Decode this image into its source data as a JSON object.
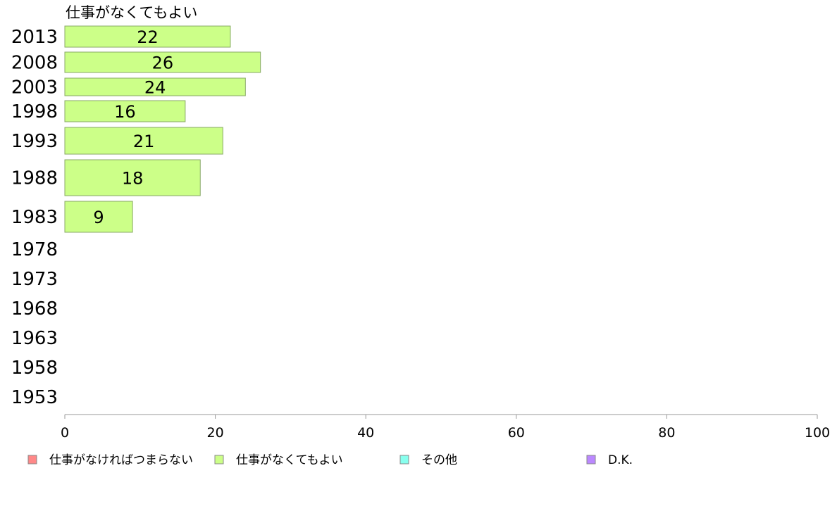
{
  "chart_data": {
    "type": "bar",
    "orientation": "horizontal",
    "series_title": "仕事がなくてもよい",
    "categories": [
      "2013",
      "2008",
      "2003",
      "1998",
      "1993",
      "1988",
      "1983",
      "1978",
      "1973",
      "1968",
      "1963",
      "1958",
      "1953"
    ],
    "series": [
      {
        "name": "仕事がなくてもよい",
        "color": "#ccff88",
        "values": [
          22,
          26,
          24,
          16,
          21,
          18,
          9,
          null,
          null,
          null,
          null,
          null,
          null
        ]
      }
    ],
    "xlim": [
      0,
      100
    ],
    "xticks": [
      0,
      20,
      40,
      60,
      80,
      100
    ],
    "legend": [
      {
        "label": "仕事がなければつまらない",
        "color": "#ff8888"
      },
      {
        "label": "仕事がなくてもよい",
        "color": "#ccff88"
      },
      {
        "label": "その他",
        "color": "#88ffee"
      },
      {
        "label": "D.K.",
        "color": "#bb88ff"
      }
    ],
    "legend_position": "bottom",
    "grid": false
  }
}
